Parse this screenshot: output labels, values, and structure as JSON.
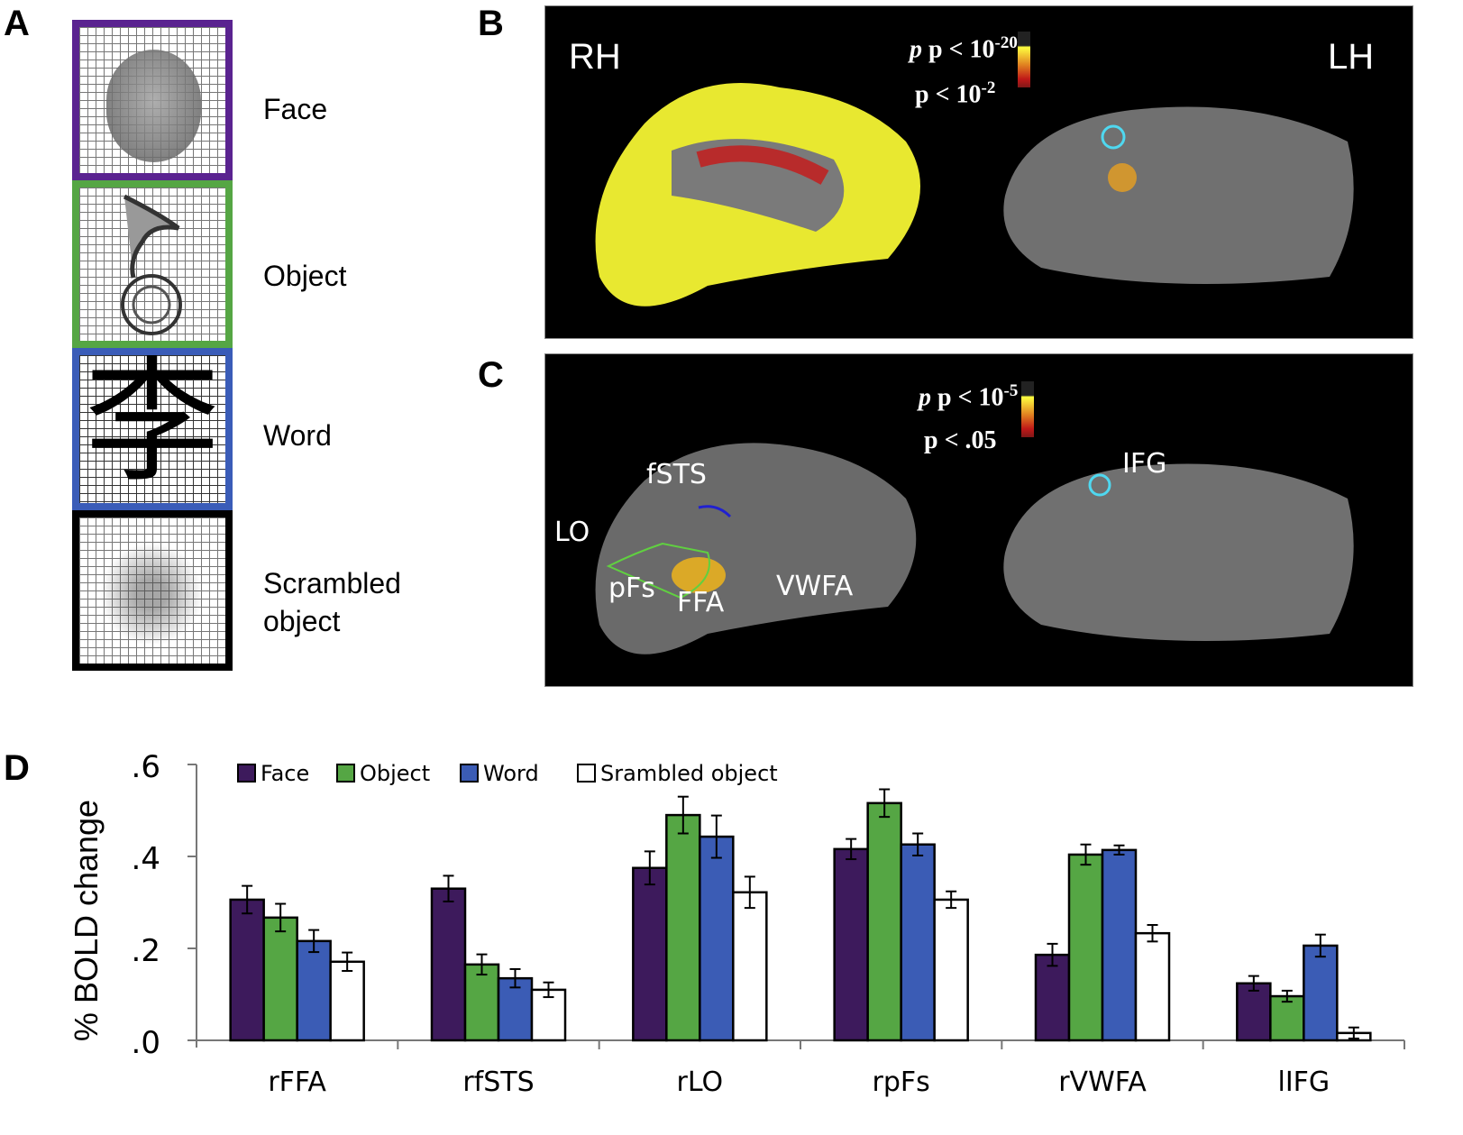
{
  "panels": {
    "a": {
      "letter": "A",
      "stimuli": [
        {
          "label": "Face",
          "border_color": "#5a2390"
        },
        {
          "label": "Object",
          "border_color": "#55a644"
        },
        {
          "label": "Word",
          "border_color": "#3a5cb8",
          "glyph": "李"
        },
        {
          "label": "Scrambled object",
          "label_line1": "Scrambled",
          "label_line2": "object",
          "border_color": "#000000"
        }
      ]
    },
    "b": {
      "letter": "B",
      "left_hemisphere_label": "LH",
      "right_hemisphere_label": "RH",
      "colorbar_top": {
        "prefix": "p < 10",
        "exp": "-20"
      },
      "colorbar_bottom": {
        "prefix": "p < 10",
        "exp": "-2"
      }
    },
    "c": {
      "letter": "C",
      "colorbar_top": {
        "prefix": "p < 10",
        "exp": "-5"
      },
      "colorbar_bottom": {
        "prefix": "p < .05"
      },
      "roi_labels": [
        "fSTS",
        "LO",
        "pFs",
        "FFA",
        "VWFA",
        "IFG"
      ]
    },
    "d": {
      "letter": "D"
    }
  },
  "chart_data": {
    "type": "bar",
    "title": "",
    "xlabel": "",
    "ylabel": "% BOLD change",
    "ylim": [
      0,
      0.6
    ],
    "yticks": [
      ".0",
      ".2",
      ".4",
      ".6"
    ],
    "ytick_values": [
      0,
      0.2,
      0.4,
      0.6
    ],
    "legend_position": "top-left",
    "categories": [
      "rFFA",
      "rfSTS",
      "rLO",
      "rpFs",
      "rVWFA",
      "lIFG"
    ],
    "series": [
      {
        "name": "Face",
        "color": "#3d1a5c",
        "values": [
          0.306,
          0.33,
          0.375,
          0.416,
          0.186,
          0.124
        ],
        "errors": [
          0.03,
          0.028,
          0.036,
          0.022,
          0.024,
          0.016
        ]
      },
      {
        "name": "Object",
        "color": "#55a644",
        "values": [
          0.267,
          0.165,
          0.49,
          0.516,
          0.404,
          0.096
        ],
        "errors": [
          0.03,
          0.022,
          0.04,
          0.03,
          0.022,
          0.012
        ]
      },
      {
        "name": "Word",
        "color": "#3b5cb5",
        "values": [
          0.216,
          0.135,
          0.443,
          0.426,
          0.414,
          0.206
        ],
        "errors": [
          0.024,
          0.02,
          0.046,
          0.024,
          0.01,
          0.024
        ]
      },
      {
        "name": "Srambled object",
        "color": "#ffffff",
        "values": [
          0.171,
          0.11,
          0.322,
          0.306,
          0.233,
          0.016
        ],
        "errors": [
          0.02,
          0.016,
          0.034,
          0.018,
          0.018,
          0.012
        ]
      }
    ]
  }
}
